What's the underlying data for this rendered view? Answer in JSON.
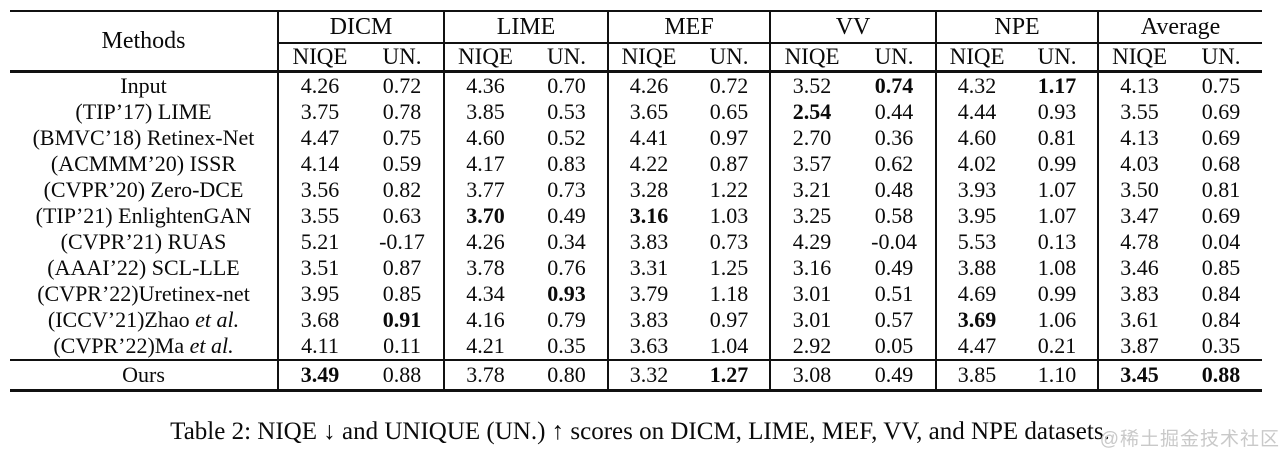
{
  "table": {
    "methods_header": "Methods",
    "groups": [
      "DICM",
      "LIME",
      "MEF",
      "VV",
      "NPE",
      "Average"
    ],
    "subheaders": [
      "NIQE",
      "UN."
    ],
    "rows": [
      {
        "method": "Input",
        "cells": [
          "4.26",
          "0.72",
          "4.36",
          "0.70",
          "4.26",
          "0.72",
          "3.52",
          "0.74",
          "4.32",
          "1.17",
          "4.13",
          "0.75"
        ],
        "bold": [
          7,
          9
        ]
      },
      {
        "method": "(TIP’17) LIME",
        "cells": [
          "3.75",
          "0.78",
          "3.85",
          "0.53",
          "3.65",
          "0.65",
          "2.54",
          "0.44",
          "4.44",
          "0.93",
          "3.55",
          "0.69"
        ],
        "bold": [
          6
        ]
      },
      {
        "method": "(BMVC’18) Retinex-Net",
        "cells": [
          "4.47",
          "0.75",
          "4.60",
          "0.52",
          "4.41",
          "0.97",
          "2.70",
          "0.36",
          "4.60",
          "0.81",
          "4.13",
          "0.69"
        ],
        "bold": []
      },
      {
        "method": "(ACMMM’20) ISSR",
        "cells": [
          "4.14",
          "0.59",
          "4.17",
          "0.83",
          "4.22",
          "0.87",
          "3.57",
          "0.62",
          "4.02",
          "0.99",
          "4.03",
          "0.68"
        ],
        "bold": []
      },
      {
        "method": "(CVPR’20) Zero-DCE",
        "cells": [
          "3.56",
          "0.82",
          "3.77",
          "0.73",
          "3.28",
          "1.22",
          "3.21",
          "0.48",
          "3.93",
          "1.07",
          "3.50",
          "0.81"
        ],
        "bold": []
      },
      {
        "method": "(TIP’21) EnlightenGAN",
        "cells": [
          "3.55",
          "0.63",
          "3.70",
          "0.49",
          "3.16",
          "1.03",
          "3.25",
          "0.58",
          "3.95",
          "1.07",
          "3.47",
          "0.69"
        ],
        "bold": [
          2,
          4
        ]
      },
      {
        "method": "(CVPR’21) RUAS",
        "cells": [
          "5.21",
          "-0.17",
          "4.26",
          "0.34",
          "3.83",
          "0.73",
          "4.29",
          "-0.04",
          "5.53",
          "0.13",
          "4.78",
          "0.04"
        ],
        "bold": []
      },
      {
        "method": "(AAAI’22) SCL-LLE",
        "cells": [
          "3.51",
          "0.87",
          "3.78",
          "0.76",
          "3.31",
          "1.25",
          "3.16",
          "0.49",
          "3.88",
          "1.08",
          "3.46",
          "0.85"
        ],
        "bold": []
      },
      {
        "method": "(CVPR’22)Uretinex-net",
        "cells": [
          "3.95",
          "0.85",
          "4.34",
          "0.93",
          "3.79",
          "1.18",
          "3.01",
          "0.51",
          "4.69",
          "0.99",
          "3.83",
          "0.84"
        ],
        "bold": [
          3
        ]
      },
      {
        "method": "(ICCV’21)Zhao ",
        "method_italic": "et al.",
        "cells": [
          "3.68",
          "0.91",
          "4.16",
          "0.79",
          "3.83",
          "0.97",
          "3.01",
          "0.57",
          "3.69",
          "1.06",
          "3.61",
          "0.84"
        ],
        "bold": [
          1,
          8
        ]
      },
      {
        "method": "(CVPR’22)Ma ",
        "method_italic": "et al.",
        "cells": [
          "4.11",
          "0.11",
          "4.21",
          "0.35",
          "3.63",
          "1.04",
          "2.92",
          "0.05",
          "4.47",
          "0.21",
          "3.87",
          "0.35"
        ],
        "bold": []
      },
      {
        "method": "Ours",
        "ours": true,
        "cells": [
          "3.49",
          "0.88",
          "3.78",
          "0.80",
          "3.32",
          "1.27",
          "3.08",
          "0.49",
          "3.85",
          "1.10",
          "3.45",
          "0.88"
        ],
        "bold": [
          0,
          5,
          10,
          11
        ]
      }
    ]
  },
  "caption": "Table 2: NIQE ↓ and UNIQUE (UN.) ↑ scores on DICM, LIME, MEF, VV, and NPE datasets.",
  "watermark": "@稀土掘金技术社区"
}
